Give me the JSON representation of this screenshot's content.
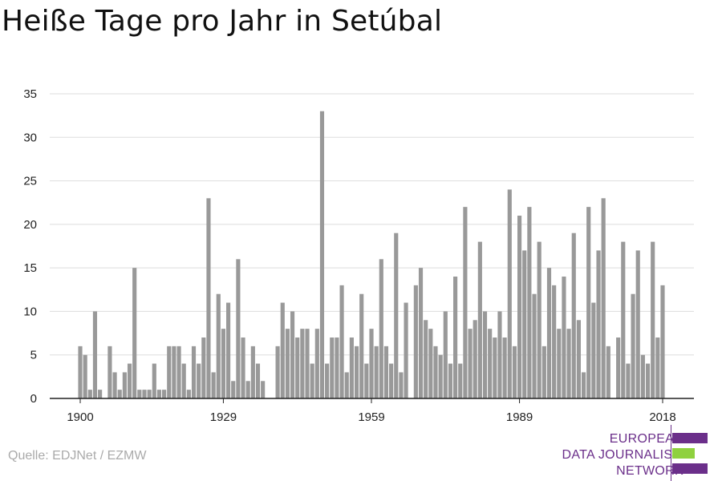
{
  "header": {
    "title": "Heiße Tage pro Jahr in Setúbal"
  },
  "footer": {
    "source": "Quelle: EDJNet / EZMW"
  },
  "logo": {
    "lines": [
      "EUROPEAN",
      "DATA JOURNALISM",
      "NETWORK"
    ],
    "colors": {
      "text": "#6b2f8a",
      "bar1": "#6b2f8a",
      "bar2": "#8fd13f",
      "bar3": "#6b2f8a"
    }
  },
  "chart_data": {
    "type": "bar",
    "title": "Heiße Tage pro Jahr in Setúbal",
    "xlabel": "",
    "ylabel": "",
    "x_start": 1900,
    "x_end": 2018,
    "xticks": [
      1900,
      1929,
      1959,
      1989,
      2018
    ],
    "yticks": [
      0,
      5,
      10,
      15,
      20,
      25,
      30,
      35
    ],
    "ylim": [
      0,
      35
    ],
    "grid": true,
    "bar_color": "#999999",
    "values": [
      6,
      5,
      1,
      10,
      1,
      0,
      6,
      3,
      1,
      3,
      4,
      15,
      1,
      1,
      1,
      4,
      1,
      1,
      6,
      6,
      6,
      4,
      1,
      6,
      4,
      7,
      23,
      3,
      12,
      8,
      11,
      2,
      16,
      7,
      2,
      6,
      4,
      2,
      0,
      0,
      6,
      11,
      8,
      10,
      7,
      8,
      8,
      4,
      8,
      33,
      4,
      7,
      7,
      13,
      3,
      7,
      6,
      12,
      4,
      8,
      6,
      16,
      6,
      4,
      19,
      3,
      11,
      0,
      13,
      15,
      9,
      8,
      6,
      5,
      10,
      4,
      14,
      4,
      22,
      8,
      9,
      18,
      10,
      8,
      7,
      10,
      7,
      24,
      6,
      21,
      17,
      22,
      12,
      18,
      6,
      15,
      13,
      8,
      14,
      8,
      19,
      9,
      3,
      22,
      11,
      17,
      23,
      6,
      0,
      7,
      18,
      4,
      12,
      17,
      5,
      4,
      18,
      7,
      13
    ]
  }
}
